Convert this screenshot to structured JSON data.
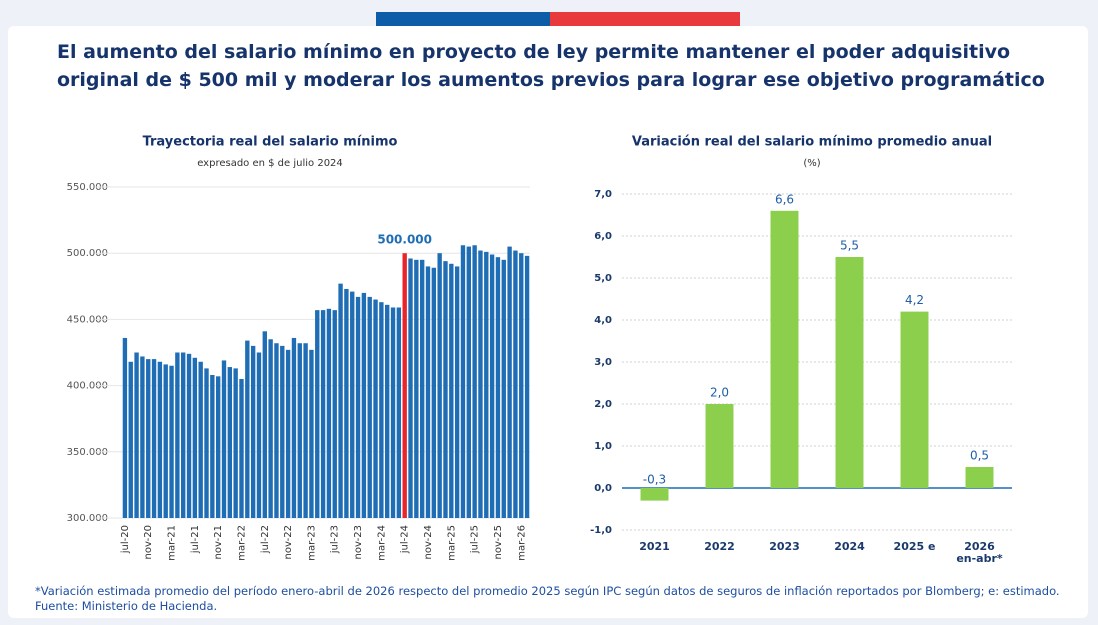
{
  "title": "El aumento del salario mínimo en proyecto de ley permite mantener el poder adquisitivo original de $ 500 mil y moderar los aumentos previos para lograr ese objetivo programático",
  "note": "*Variación estimada promedio del período enero-abril de 2026 respecto del promedio 2025 según IPC según datos de seguros de inflación reportados por Blomberg; e: estimado.",
  "source": "Fuente: Ministerio de Hacienda.",
  "chart_data": [
    {
      "type": "bar",
      "title": "Trayectoria real del salario mínimo",
      "subtitle": "expresado en $ de julio 2024",
      "categories": [
        "jul-20",
        null,
        null,
        null,
        "nov-20",
        null,
        null,
        null,
        "mar-21",
        null,
        null,
        null,
        "jul-21",
        null,
        null,
        null,
        "nov-21",
        null,
        null,
        null,
        "mar-22",
        null,
        null,
        null,
        "jul-22",
        null,
        null,
        null,
        "nov-22",
        null,
        null,
        null,
        "mar-23",
        null,
        null,
        null,
        "jul-23",
        null,
        null,
        null,
        "nov-23",
        null,
        null,
        null,
        "mar-24",
        null,
        null,
        null,
        "jul-24",
        null,
        null,
        null,
        "nov-24",
        null,
        null,
        null,
        "mar-25",
        null,
        null,
        null,
        "jul-25",
        null,
        null,
        null,
        "nov-25",
        null,
        null,
        null,
        "mar-26",
        null
      ],
      "values": [
        436000,
        418000,
        425000,
        422000,
        420000,
        420000,
        418000,
        416000,
        415000,
        425000,
        425000,
        424000,
        421000,
        418000,
        413000,
        408000,
        407000,
        419000,
        414000,
        413000,
        405000,
        434000,
        430000,
        425000,
        441000,
        435000,
        432000,
        430000,
        427000,
        436000,
        432000,
        432000,
        427000,
        457000,
        457000,
        458000,
        457000,
        477000,
        473000,
        471000,
        467000,
        470000,
        467000,
        465000,
        463000,
        461000,
        459000,
        459000,
        500000,
        496000,
        495000,
        495000,
        490000,
        489000,
        500000,
        494000,
        492000,
        490000,
        506000,
        505000,
        506000,
        502000,
        501000,
        499000,
        497000,
        495000,
        505000,
        502000,
        500000,
        498000
      ],
      "colors": [
        "#1f6db4",
        "#1f6db4",
        "#1f6db4",
        "#1f6db4",
        "#1f6db4",
        "#1f6db4",
        "#1f6db4",
        "#1f6db4",
        "#1f6db4",
        "#1f6db4",
        "#1f6db4",
        "#1f6db4",
        "#1f6db4",
        "#1f6db4",
        "#1f6db4",
        "#1f6db4",
        "#1f6db4",
        "#1f6db4",
        "#1f6db4",
        "#1f6db4",
        "#1f6db4",
        "#1f6db4",
        "#1f6db4",
        "#1f6db4",
        "#1f6db4",
        "#1f6db4",
        "#1f6db4",
        "#1f6db4",
        "#1f6db4",
        "#1f6db4",
        "#1f6db4",
        "#1f6db4",
        "#1f6db4",
        "#1f6db4",
        "#1f6db4",
        "#1f6db4",
        "#1f6db4",
        "#1f6db4",
        "#1f6db4",
        "#1f6db4",
        "#1f6db4",
        "#1f6db4",
        "#1f6db4",
        "#1f6db4",
        "#1f6db4",
        "#1f6db4",
        "#1f6db4",
        "#1f6db4",
        "#e8252b",
        "#1f6db4",
        "#1f6db4",
        "#1f6db4",
        "#1f6db4",
        "#1f6db4",
        "#1f6db4",
        "#1f6db4",
        "#1f6db4",
        "#1f6db4",
        "#1f6db4",
        "#1f6db4",
        "#1f6db4",
        "#1f6db4",
        "#1f6db4",
        "#1f6db4",
        "#1f6db4",
        "#1f6db4",
        "#1f6db4",
        "#1f6db4",
        "#1f6db4",
        "#1f6db4"
      ],
      "annotation": "500.000",
      "ylim": [
        300000,
        550000
      ],
      "yticks": [
        {
          "value": 300000,
          "label": "300.000"
        },
        {
          "value": 350000,
          "label": "350.000"
        },
        {
          "value": 400000,
          "label": "400.000"
        },
        {
          "value": 450000,
          "label": "450.000"
        },
        {
          "value": 500000,
          "label": "500.000"
        },
        {
          "value": 550000,
          "label": "550.000"
        }
      ],
      "grid": true
    },
    {
      "type": "bar",
      "title": "Variación real del salario mínimo promedio anual",
      "subtitle": "(%)",
      "categories": [
        "2021",
        "2022",
        "2023",
        "2024",
        "2025 e",
        "2026 en-abr*"
      ],
      "values": [
        -0.3,
        2.0,
        6.6,
        5.5,
        4.2,
        0.5
      ],
      "value_labels": [
        "-0,3",
        "2,0",
        "6,6",
        "5,5",
        "4,2",
        "0,5"
      ],
      "color": "#8ccf4d",
      "ylim": [
        -1,
        7
      ],
      "yticks": [
        {
          "value": -1,
          "label": "-1,0"
        },
        {
          "value": 0,
          "label": "0,0"
        },
        {
          "value": 1,
          "label": "1,0"
        },
        {
          "value": 2,
          "label": "2,0"
        },
        {
          "value": 3,
          "label": "3,0"
        },
        {
          "value": 4,
          "label": "4,0"
        },
        {
          "value": 5,
          "label": "5,0"
        },
        {
          "value": 6,
          "label": "6,0"
        },
        {
          "value": 7,
          "label": "7,0"
        }
      ],
      "grid": true
    }
  ]
}
